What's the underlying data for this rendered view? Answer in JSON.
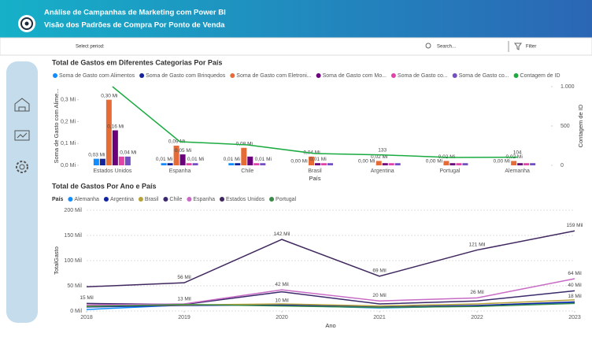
{
  "header": {
    "title": "Análise de Campanhas de Marketing com Power BI",
    "subtitle": "Visão dos Padrões de Compra Por Ponto de Venda"
  },
  "toolbar": {
    "period": "Select period:",
    "search": "Search...",
    "filter": "Filter"
  },
  "chart_data": [
    {
      "type": "bar",
      "title": "Total de Gastos em Diferentes Categorias Por País",
      "x_label": "País",
      "y_label": "Soma de Gasto com Alime...",
      "y2_label": "Contagem de ID",
      "categories": [
        "Estados Unidos",
        "Espanha",
        "Chile",
        "Brasil",
        "Argentina",
        "Portugal",
        "Alemanha"
      ],
      "ylim": [
        0,
        0.36
      ],
      "yticks": [
        {
          "value": 0,
          "label": "0,0 Mi"
        },
        {
          "value": 0.1,
          "label": "0,1 Mi"
        },
        {
          "value": 0.2,
          "label": "0,2 Mi"
        },
        {
          "value": 0.3,
          "label": "0,3 Mi"
        }
      ],
      "y2lim": [
        0,
        1000
      ],
      "y2ticks": [
        0,
        500,
        {
          "value": 1000,
          "label": "1.000"
        }
      ],
      "series": [
        {
          "name": "Soma de Gasto com Alimentos",
          "color": "#118dff",
          "values": [
            0.03,
            0.01,
            0.01,
            0,
            0,
            0,
            0
          ],
          "value_labels": [
            "0,03 Mi",
            "0,01 Mi",
            "0,01 Mi",
            "0,00 Mi",
            "0,00 Mi",
            "0,00 Mi",
            "0,00 Mi"
          ]
        },
        {
          "name": "Soma de Gasto com Brinquedos",
          "color": "#12239e",
          "values": [
            0.03,
            0.01,
            0.01,
            0,
            0,
            0,
            0
          ],
          "value_labels": [
            null,
            null,
            null,
            null,
            null,
            null,
            null
          ]
        },
        {
          "name": "Soma de Gasto com Eletroni...",
          "color": "#e66c37",
          "values": [
            0.3,
            0.09,
            0.08,
            0.04,
            0.02,
            0.02,
            0.02
          ],
          "value_labels": [
            "0,30 Mi",
            "0,09 Mi",
            "0,08 Mi",
            "0,04 Mi",
            "0,02 Mi",
            "0,02 Mi",
            "0,02 Mi"
          ]
        },
        {
          "name": "Soma de Gasto com Mo...",
          "color": "#6b007b",
          "values": [
            0.16,
            0.05,
            0.04,
            0.01,
            0.01,
            0.01,
            0.01
          ],
          "value_labels": [
            "0,16 Mi",
            "0,05 Mi",
            null,
            "0,01 Mi",
            null,
            null,
            null
          ]
        },
        {
          "name": "Soma de Gasto co...",
          "color": "#e044a7",
          "values": [
            0.04,
            0.01,
            0.01,
            0.01,
            0.01,
            0.01,
            0.01
          ],
          "value_labels": [
            null,
            null,
            null,
            null,
            null,
            null,
            null
          ]
        },
        {
          "name": "Soma de Gasto co...",
          "color": "#744ec2",
          "values": [
            0.04,
            0.01,
            0.01,
            0.01,
            0.01,
            0.01,
            0.01
          ],
          "value_labels": [
            "0,04 Mi",
            "0,01 Mi",
            "0,01 Mi",
            null,
            null,
            null,
            null
          ]
        },
        {
          "name": "Contagem de ID",
          "color": "#1aab40",
          "type": "line",
          "axis": "y2",
          "values": [
            1000,
            300,
            260,
            150,
            133,
            100,
            104
          ],
          "value_labels": [
            null,
            null,
            null,
            null,
            "133",
            null,
            "104"
          ]
        }
      ]
    },
    {
      "type": "line",
      "title": "Total de Gastos Por Ano e País",
      "legend_title": "País",
      "x_label": "Ano",
      "y_label": "TotalGasto",
      "x": [
        2018,
        2019,
        2020,
        2021,
        2022,
        2023
      ],
      "xlim": [
        2018,
        2023
      ],
      "xticks": [
        2018,
        2019,
        2020,
        2021,
        2022,
        2023
      ],
      "ylim": [
        0,
        200
      ],
      "yticks": [
        {
          "value": 0,
          "label": "0 Mil"
        },
        {
          "value": 50,
          "label": "50 Mil"
        },
        {
          "value": 100,
          "label": "100 Mil"
        },
        {
          "value": 150,
          "label": "150 Mil"
        },
        {
          "value": 200,
          "label": "200 Mil"
        }
      ],
      "grid": true,
      "series": [
        {
          "name": "Alemanha",
          "color": "#118dff",
          "values": [
            3,
            12,
            11,
            6,
            10,
            16
          ],
          "value_labels": [
            null,
            null,
            null,
            null,
            null,
            null
          ]
        },
        {
          "name": "Argentina",
          "color": "#12239e",
          "values": [
            8,
            11,
            12,
            8,
            11,
            18
          ],
          "value_labels": [
            null,
            null,
            null,
            null,
            null,
            "18 Mil"
          ]
        },
        {
          "name": "Brasil",
          "color": "#b5a33a",
          "values": [
            10,
            12,
            14,
            10,
            14,
            22
          ],
          "value_labels": [
            null,
            null,
            null,
            null,
            null,
            null
          ]
        },
        {
          "name": "Chile",
          "color": "#3b2a6b",
          "values": [
            15,
            13,
            38,
            14,
            20,
            40
          ],
          "value_labels": [
            "15 Mil",
            null,
            null,
            null,
            null,
            "40 Mil"
          ]
        },
        {
          "name": "Espanha",
          "color": "#c86bc5",
          "values": [
            12,
            14,
            42,
            20,
            26,
            64
          ],
          "value_labels": [
            null,
            null,
            "42 Mil",
            "20 Mil",
            "26 Mil",
            "64 Mil"
          ]
        },
        {
          "name": "Estados Unidos",
          "color": "#40275e",
          "values": [
            48,
            56,
            142,
            69,
            121,
            159
          ],
          "value_labels": [
            null,
            "56 Mil",
            "142 Mil",
            "69 Mil",
            "121 Mil",
            "159 Mil"
          ]
        },
        {
          "name": "Portugal",
          "color": "#3a8a4a",
          "values": [
            9,
            13,
            10,
            7,
            9,
            15
          ],
          "value_labels": [
            null,
            "13 Mil",
            "10 Mil",
            null,
            null,
            null
          ]
        }
      ]
    }
  ]
}
